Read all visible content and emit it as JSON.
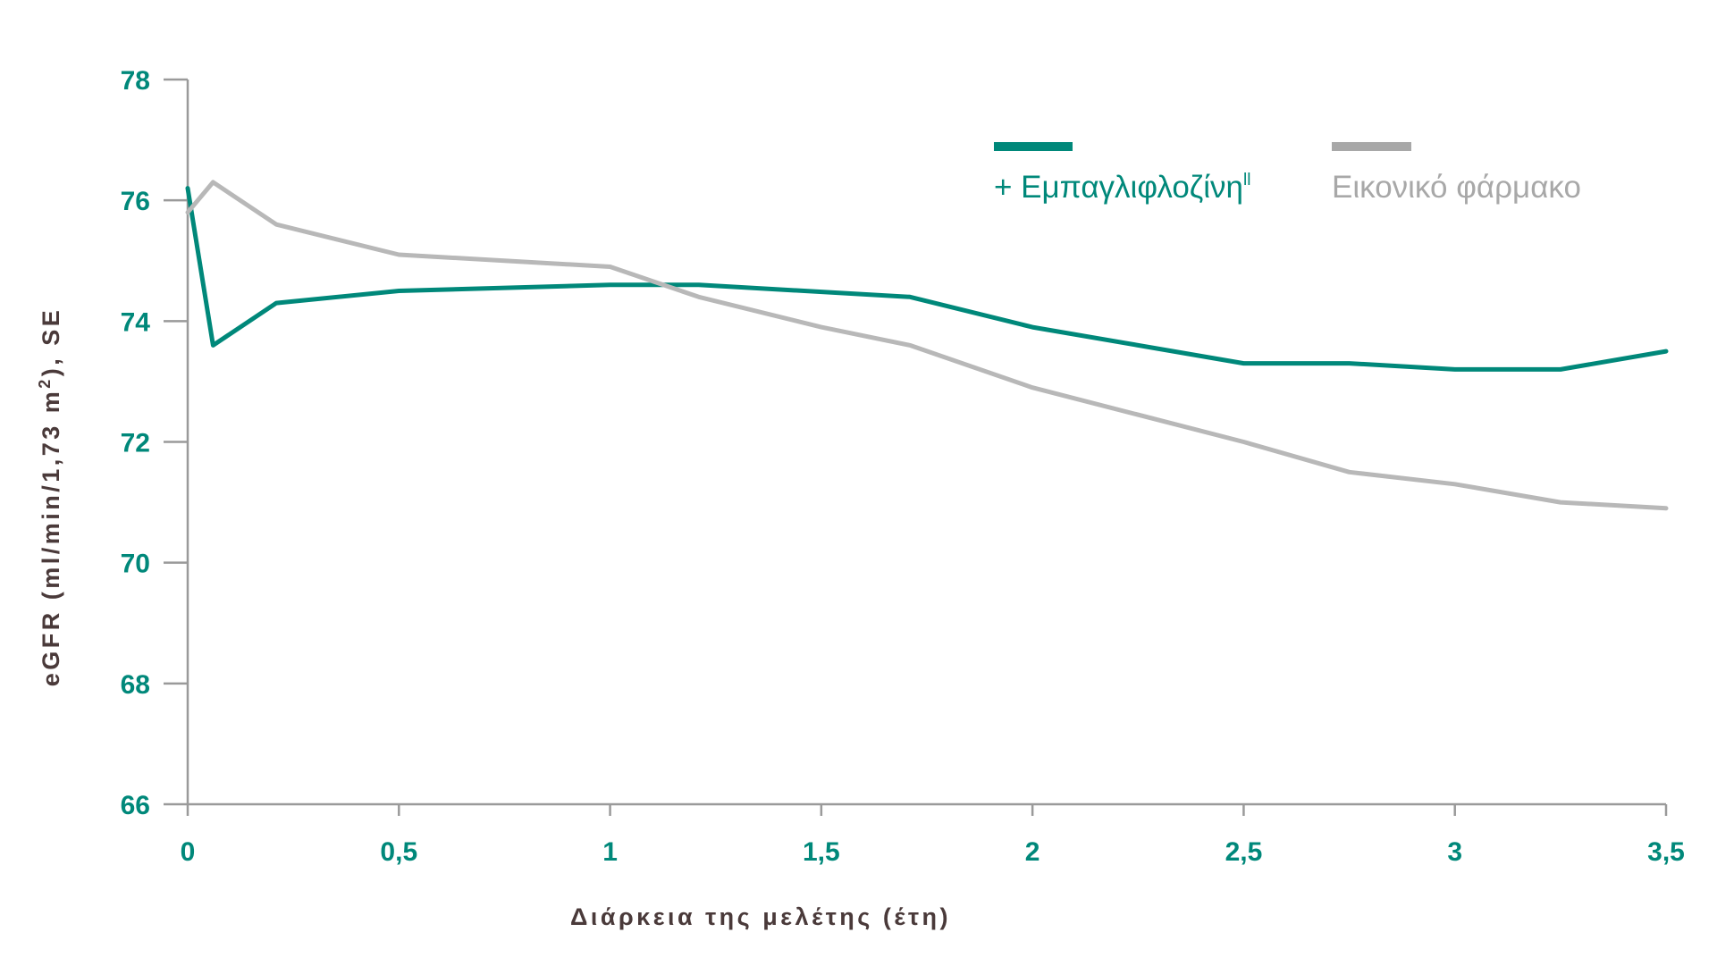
{
  "colors": {
    "teal": "#00887a",
    "placebo": "#b8b8b8",
    "legend_placebo": "#a8a8a8",
    "axis": "#9a9a9a",
    "axis_title": "#4a3a3a"
  },
  "chart_data": {
    "type": "line",
    "title": "",
    "xlabel": "Διάρκεια της μελέτης (έτη)",
    "ylabel": "eGFR (ml/min/1,73 m²), SE",
    "ylabel_main": "eGFR (ml/min/1,73 m",
    "ylabel_sup": "2",
    "ylabel_tail": "), SE",
    "xlim": [
      0,
      3.5
    ],
    "ylim": [
      66,
      78
    ],
    "x_ticks": [
      0,
      0.5,
      1,
      1.5,
      2,
      2.5,
      3,
      3.5
    ],
    "x_tick_labels": [
      "0",
      "0,5",
      "1",
      "1,5",
      "2",
      "2,5",
      "3",
      "3,5"
    ],
    "y_ticks": [
      66,
      68,
      70,
      72,
      74,
      76,
      78
    ],
    "y_tick_labels": [
      "66",
      "68",
      "70",
      "72",
      "74",
      "76",
      "78"
    ],
    "grid": false,
    "legend_position": "top-right",
    "series": [
      {
        "name": "+ Εμπαγλιφλοζίνη",
        "legend_main": "+ Εμπαγλιφλοζίνη",
        "legend_sup": "ll",
        "color_key": "teal",
        "x": [
          0,
          0.06,
          0.21,
          0.5,
          1,
          1.21,
          1.71,
          2,
          2.5,
          2.75,
          3,
          3.25,
          3.5
        ],
        "y": [
          76.2,
          73.6,
          74.3,
          74.5,
          74.6,
          74.6,
          74.4,
          73.9,
          73.3,
          73.3,
          73.2,
          73.2,
          73.5
        ]
      },
      {
        "name": "Εικονικό φάρμακο",
        "legend_main": "Εικονικό φάρμακο",
        "legend_sup": "",
        "color_key": "placebo",
        "x": [
          0,
          0.06,
          0.21,
          0.5,
          1,
          1.21,
          1.5,
          1.71,
          2,
          2.5,
          2.75,
          3,
          3.25,
          3.5
        ],
        "y": [
          75.8,
          76.3,
          75.6,
          75.1,
          74.9,
          74.4,
          73.9,
          73.6,
          72.9,
          72.0,
          71.5,
          71.3,
          71.0,
          70.9
        ]
      }
    ]
  }
}
